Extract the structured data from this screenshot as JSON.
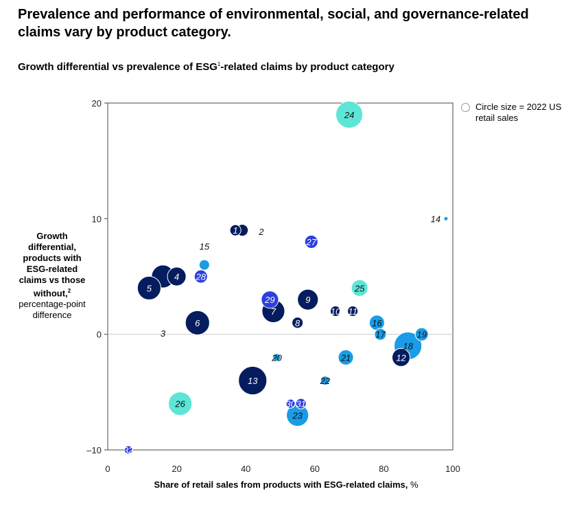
{
  "title": "Prevalence and performance of environmental, social, and governance-related claims vary by product category.",
  "subtitle_main": "Growth differential vs prevalence of ESG",
  "subtitle_sup": "1",
  "subtitle_tail": "-related claims by product category",
  "y_label_bold": "Growth differential, products with ESG-related claims vs those without,",
  "y_label_sup": "2",
  "y_label_rest": "percentage-point difference",
  "x_label_bold": "Share of retail sales from products with ESG-related claims,",
  "x_label_unit": "%",
  "legend_text": "Circle size = 2022 US retail sales",
  "colors": {
    "navy": "#051c5e",
    "royal": "#2d3fdc",
    "sky": "#1a9ce6",
    "teal": "#5de6d6"
  },
  "chart_data": {
    "type": "scatter",
    "title": "Growth differential vs prevalence of ESG-related claims by product category",
    "xlabel": "Share of retail sales from products with ESG-related claims, %",
    "ylabel": "Growth differential, products with ESG-related claims vs those without, percentage-point difference",
    "xlim": [
      0,
      100
    ],
    "ylim": [
      -10,
      20
    ],
    "xticks": [
      0,
      20,
      40,
      60,
      80,
      100
    ],
    "yticks": [
      -10,
      0,
      10,
      20
    ],
    "ytick_labels": [
      "–10",
      "0",
      "10",
      "20"
    ],
    "size_note": "Circle size = 2022 US retail sales",
    "points": [
      {
        "id": "26",
        "x": 21,
        "y": -6,
        "size": 3.4,
        "color": "teal"
      },
      {
        "id": "24",
        "x": 70,
        "y": 19,
        "size": 3.9,
        "color": "teal"
      },
      {
        "id": "25",
        "x": 73,
        "y": 4,
        "size": 2.4,
        "color": "teal"
      },
      {
        "id": "23",
        "x": 55,
        "y": -7,
        "size": 3.2,
        "color": "sky"
      },
      {
        "id": "18",
        "x": 87,
        "y": -1,
        "size": 4.0,
        "color": "sky"
      },
      {
        "id": "19",
        "x": 91,
        "y": 0,
        "size": 1.9,
        "color": "sky"
      },
      {
        "id": "16",
        "x": 78,
        "y": 1,
        "size": 2.2,
        "color": "sky"
      },
      {
        "id": "17",
        "x": 79,
        "y": 0,
        "size": 1.7,
        "color": "sky"
      },
      {
        "id": "21",
        "x": 69,
        "y": -2,
        "size": 2.2,
        "color": "sky"
      },
      {
        "id": "22",
        "x": 63,
        "y": -4,
        "size": 1.3,
        "color": "sky"
      },
      {
        "id": "20",
        "x": 49,
        "y": -2,
        "size": 1.1,
        "color": "sky"
      },
      {
        "id": "15",
        "x": 28,
        "y": 6,
        "size": 1.5,
        "color": "sky"
      },
      {
        "id": "14",
        "x": 98,
        "y": 10,
        "size": 0.6,
        "color": "sky"
      },
      {
        "id": "3",
        "x": 16,
        "y": 5,
        "size": 3.3,
        "color": "navy"
      },
      {
        "id": "5",
        "x": 12,
        "y": 4,
        "size": 3.4,
        "color": "navy"
      },
      {
        "id": "4",
        "x": 20,
        "y": 5,
        "size": 2.7,
        "color": "navy"
      },
      {
        "id": "6",
        "x": 26,
        "y": 1,
        "size": 3.5,
        "color": "navy"
      },
      {
        "id": "13",
        "x": 42,
        "y": -4,
        "size": 4.1,
        "color": "navy"
      },
      {
        "id": "7",
        "x": 48,
        "y": 2,
        "size": 3.3,
        "color": "navy"
      },
      {
        "id": "8",
        "x": 55,
        "y": 1,
        "size": 1.6,
        "color": "navy"
      },
      {
        "id": "9",
        "x": 58,
        "y": 3,
        "size": 3.0,
        "color": "navy"
      },
      {
        "id": "10",
        "x": 66,
        "y": 2,
        "size": 1.5,
        "color": "navy"
      },
      {
        "id": "11",
        "x": 71,
        "y": 2,
        "size": 1.5,
        "color": "navy"
      },
      {
        "id": "12",
        "x": 85,
        "y": -2,
        "size": 2.6,
        "color": "navy"
      },
      {
        "id": "2",
        "x": 39,
        "y": 9,
        "size": 1.7,
        "color": "navy"
      },
      {
        "id": "1",
        "x": 37,
        "y": 9,
        "size": 1.6,
        "color": "navy"
      },
      {
        "id": "28",
        "x": 27,
        "y": 5,
        "size": 1.9,
        "color": "royal"
      },
      {
        "id": "29",
        "x": 47,
        "y": 3,
        "size": 2.5,
        "color": "royal"
      },
      {
        "id": "27",
        "x": 59,
        "y": 8,
        "size": 1.9,
        "color": "royal"
      },
      {
        "id": "30",
        "x": 53,
        "y": -6,
        "size": 1.3,
        "color": "royal"
      },
      {
        "id": "31",
        "x": 56,
        "y": -6,
        "size": 1.5,
        "color": "royal"
      },
      {
        "id": "32",
        "x": 6,
        "y": -10,
        "size": 1.2,
        "color": "royal"
      }
    ],
    "outside_labels": {
      "3": {
        "dx": 0,
        "dy": -4.9
      },
      "2": {
        "dx": 5.5,
        "dy": -0.1
      },
      "15": {
        "dx": 0,
        "dy": 1.6
      },
      "14": {
        "dx": -3,
        "dy": 0
      }
    }
  }
}
